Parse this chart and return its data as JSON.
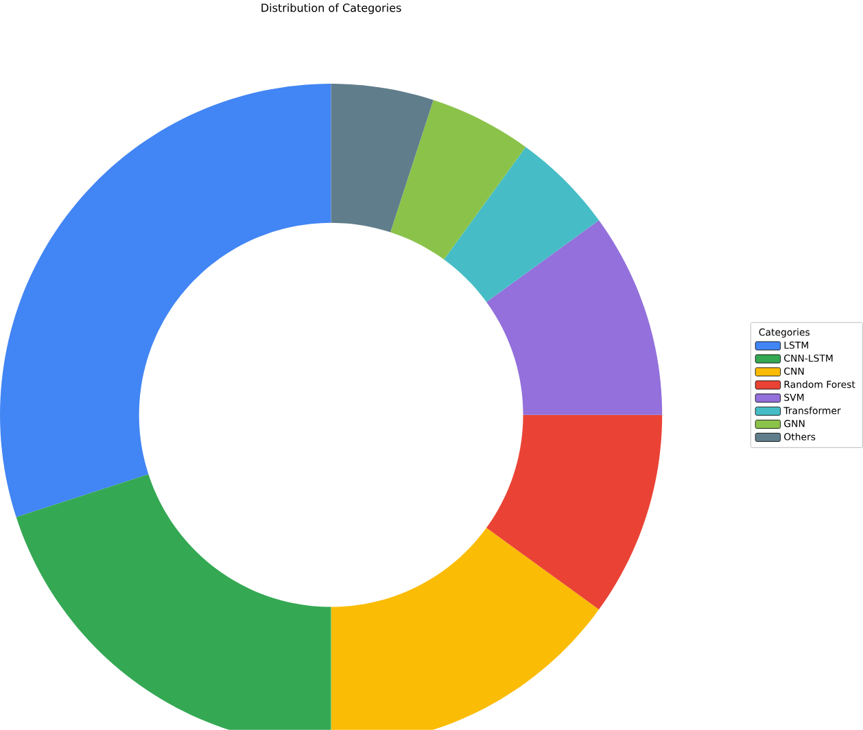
{
  "chart_data": {
    "type": "donut",
    "title": "Distribution of Categories",
    "legend_title": "Categories",
    "legend": "right",
    "categories": [
      "LSTM",
      "CNN-LSTM",
      "CNN",
      "Random Forest",
      "SVM",
      "Transformer",
      "GNN",
      "Others"
    ],
    "values": [
      30,
      20,
      15,
      10,
      10,
      5,
      5,
      5
    ],
    "colors": [
      "#4285f4",
      "#34a853",
      "#fbbc05",
      "#ea4335",
      "#9370db",
      "#46bdc6",
      "#8bc34a",
      "#607d8b"
    ]
  }
}
